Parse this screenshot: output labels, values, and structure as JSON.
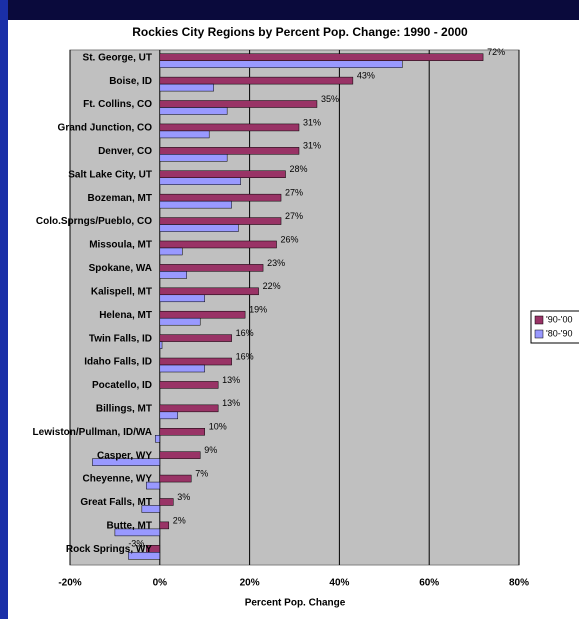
{
  "chart_data": {
    "type": "bar",
    "orientation": "horizontal",
    "title": "Rockies City Regions by Percent Pop. Change: 1990 - 2000",
    "x_label": "Percent Pop. Change",
    "categories": [
      "St. George, UT",
      "Boise, ID",
      "Ft. Collins, CO",
      "Grand Junction, CO",
      "Denver, CO",
      "Salt Lake City, UT",
      "Bozeman, MT",
      "Colo.Sprngs/Pueblo, CO",
      "Missoula, MT",
      "Spokane, WA",
      "Kalispell, MT",
      "Helena, MT",
      "Twin Falls, ID",
      "Idaho Falls, ID",
      "Pocatello, ID",
      "Billings, MT",
      "Lewiston/Pullman, ID/WA",
      "Casper, WY",
      "Cheyenne, WY",
      "Great Falls, MT",
      "Butte, MT",
      "Rock Springs, WY"
    ],
    "series": [
      {
        "name": "'90-'00",
        "color": "#993366",
        "values": [
          72,
          43,
          35,
          31,
          31,
          28,
          27,
          27,
          26,
          23,
          22,
          19,
          16,
          16,
          13,
          13,
          10,
          9,
          7,
          3,
          2,
          -3
        ],
        "value_labels": [
          "72%",
          "43%",
          "35%",
          "31%",
          "31%",
          "28%",
          "27%",
          "27%",
          "26%",
          "23%",
          "22%",
          "19%",
          "16%",
          "16%",
          "13%",
          "13%",
          "10%",
          "9%",
          "7%",
          "3%",
          "2%",
          "-3%"
        ]
      },
      {
        "name": "'80-'90",
        "color": "#9999ff",
        "values": [
          54,
          12,
          15,
          11,
          15,
          18,
          16,
          17.5,
          5,
          6,
          10,
          9,
          0.5,
          10,
          0,
          4,
          -1,
          -15,
          -3,
          -4,
          -10,
          -7
        ]
      }
    ],
    "xlim": [
      -20,
      80
    ],
    "xticks": [
      {
        "value": -20,
        "label": "-20%"
      },
      {
        "value": 0,
        "label": "0%"
      },
      {
        "value": 20,
        "label": "20%"
      },
      {
        "value": 40,
        "label": "40%"
      },
      {
        "value": 60,
        "label": "60%"
      },
      {
        "value": 80,
        "label": "80%"
      }
    ],
    "grid": true,
    "legend": "right"
  }
}
